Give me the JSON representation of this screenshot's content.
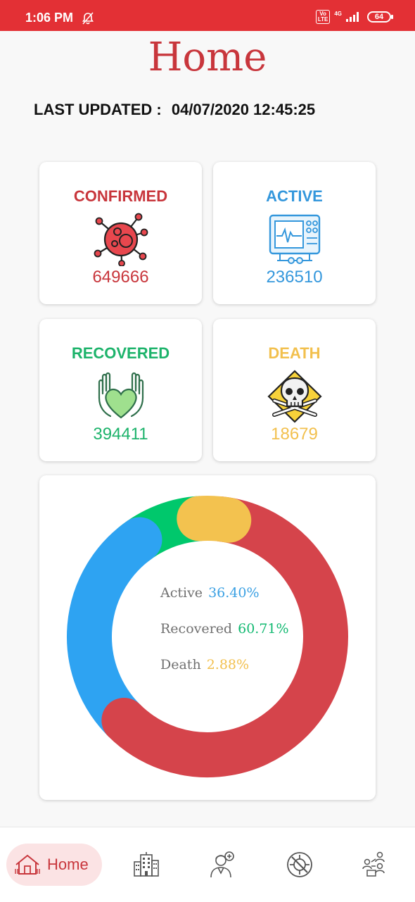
{
  "status_bar": {
    "time": "1:06 PM",
    "volte": "Vo\nLTE",
    "network": "4G",
    "battery": "64"
  },
  "page": {
    "title": "Home",
    "last_updated_label": "LAST UPDATED :",
    "last_updated_value": "04/07/2020 12:45:25"
  },
  "cards": [
    {
      "label": "CONFIRMED",
      "value": "649666",
      "color": "#c8363c",
      "icon": "virus-icon"
    },
    {
      "label": "ACTIVE",
      "value": "236510",
      "color": "#3497dc",
      "icon": "heart-monitor-icon"
    },
    {
      "label": "RECOVERED",
      "value": "394411",
      "color": "#1db36b",
      "icon": "hands-heart-icon"
    },
    {
      "label": "DEATH",
      "value": "18679",
      "color": "#f2c04e",
      "icon": "skull-crossbones-icon"
    }
  ],
  "chart_data": {
    "type": "pie",
    "categories": [
      "Active",
      "Recovered",
      "Death"
    ],
    "values": [
      36.4,
      60.71,
      2.88
    ],
    "labels": [
      "36.40%",
      "60.71%",
      "2.88%"
    ],
    "colors": [
      "#2ea3f2",
      "#d5444b",
      "#f3c24f"
    ],
    "extra_segment_color": "#00c86c",
    "donut": true
  },
  "legend": [
    {
      "label": "Active",
      "pct": "36.40%",
      "color": "#3aa0e3"
    },
    {
      "label": "Recovered",
      "pct": "60.71%",
      "color": "#12b971"
    },
    {
      "label": "Death",
      "pct": "2.88%",
      "color": "#f2c04e"
    }
  ],
  "nav": {
    "home_label": "Home",
    "items": [
      "home-icon",
      "city-buildings-icon",
      "doctor-icon",
      "virus-ban-icon",
      "people-network-icon"
    ]
  }
}
